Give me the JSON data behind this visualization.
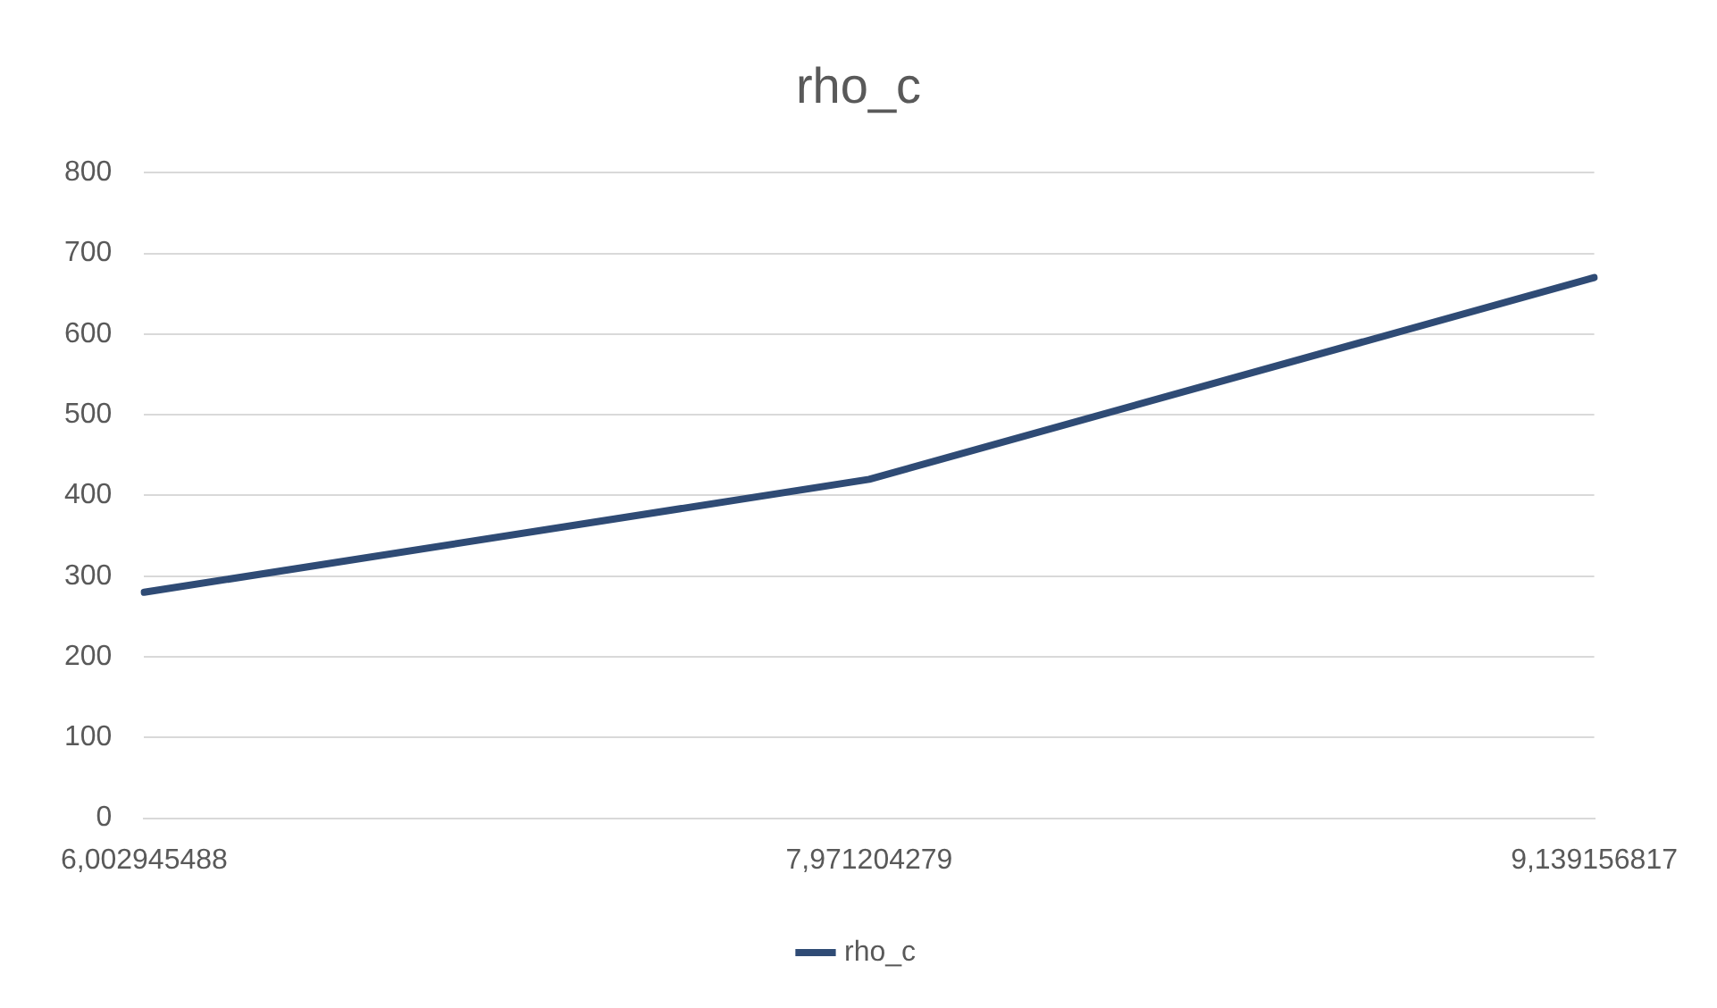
{
  "chart_data": {
    "type": "line",
    "title": "rho_c",
    "categories": [
      "6,002945488",
      "7,971204279",
      "9,139156817"
    ],
    "series": [
      {
        "name": "rho_c",
        "color": "#2f4b75",
        "values": [
          280,
          420,
          670
        ]
      }
    ],
    "ylim": [
      0,
      800
    ],
    "yticks": [
      0,
      100,
      200,
      300,
      400,
      500,
      600,
      700,
      800
    ],
    "grid": "y",
    "legend": "bottom",
    "marker": "none",
    "line_style": "solid"
  }
}
